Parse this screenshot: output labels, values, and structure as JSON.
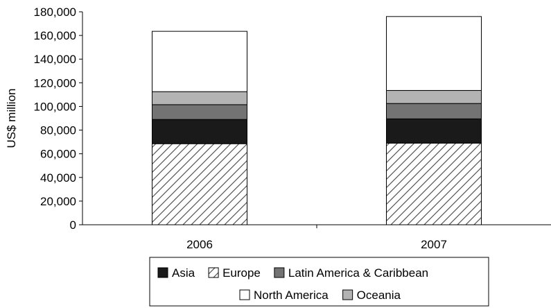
{
  "chart_data": {
    "type": "bar",
    "stacked": true,
    "title": "",
    "xlabel": "",
    "ylabel": "US$ million",
    "ylim": [
      0,
      180000
    ],
    "yticks": [
      0,
      20000,
      40000,
      60000,
      80000,
      100000,
      120000,
      140000,
      160000,
      180000
    ],
    "ytick_labels": [
      "0",
      "20,000",
      "40,000",
      "60,000",
      "80,000",
      "100,000",
      "120,000",
      "140,000",
      "160,000",
      "180,000"
    ],
    "categories": [
      "2006",
      "2007"
    ],
    "series": [
      {
        "name": "Europe",
        "values": [
          68500,
          69000
        ],
        "fill": "hatch",
        "color": "#ffffff"
      },
      {
        "name": "Asia",
        "values": [
          20500,
          20500
        ],
        "fill": "solid",
        "color": "#1a1a1a"
      },
      {
        "name": "Latin America & Caribbean",
        "values": [
          12500,
          13000
        ],
        "fill": "solid",
        "color": "#737373"
      },
      {
        "name": "Oceania",
        "values": [
          11000,
          11000
        ],
        "fill": "solid",
        "color": "#b3b3b3"
      },
      {
        "name": "North America",
        "values": [
          51000,
          62500
        ],
        "fill": "solid",
        "color": "#ffffff"
      }
    ],
    "legend": {
      "position": "bottom",
      "rows": [
        [
          "Asia",
          "Europe",
          "Latin America & Caribbean"
        ],
        [
          "North America",
          "Oceania"
        ]
      ]
    },
    "grid": false
  }
}
